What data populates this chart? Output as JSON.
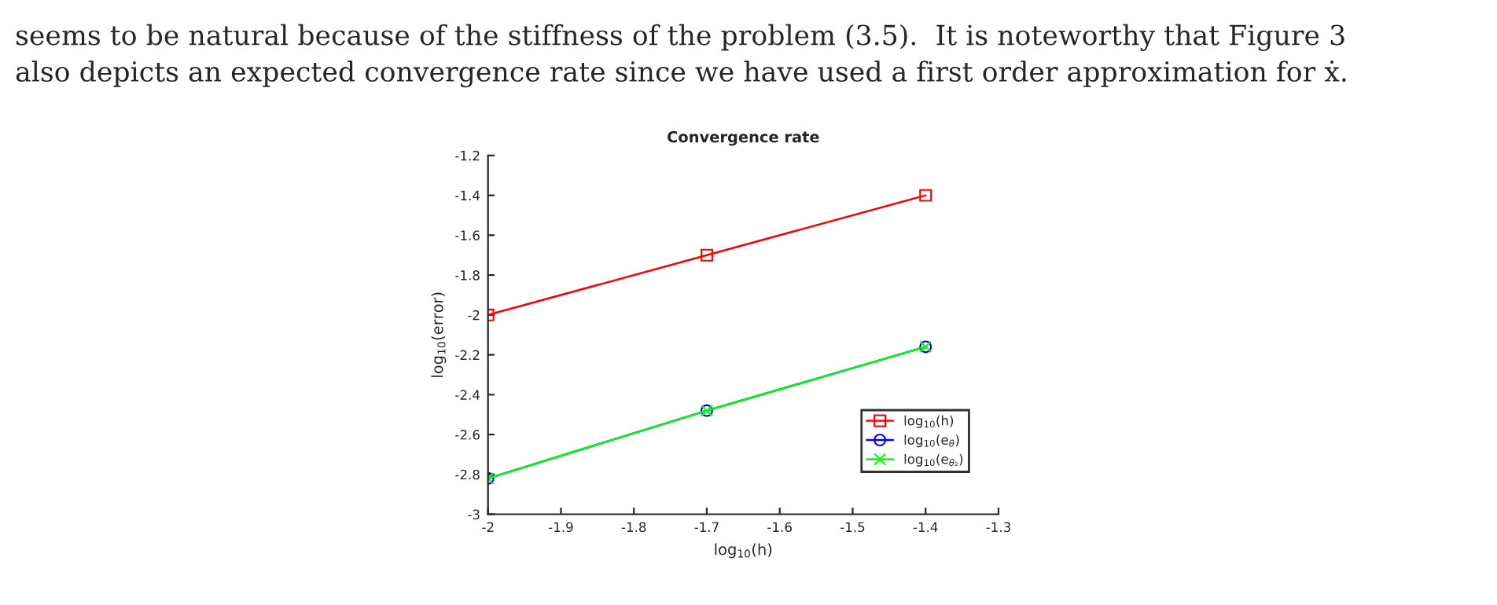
{
  "chart_data": {
    "type": "line",
    "title": "Convergence rate",
    "xlabel": "log$_{10}$(h)",
    "ylabel": "log$_{10}$(error)",
    "x": [
      -2,
      -1.7,
      -1.4
    ],
    "series": [
      {
        "name": "log$_{10}$(h)",
        "color": "#ff0000",
        "marker": "square",
        "values": [
          -2,
          -1.7,
          -1.4
        ]
      },
      {
        "name": "log$_{10}$(e$_{θ}$)",
        "color": "#0000ff",
        "marker": "circle",
        "values": [
          -2.82,
          -2.48,
          -2.16
        ]
      },
      {
        "name": "log$_{10}$(e$_{θ₂}$)",
        "color": "#00ff00",
        "marker": "cross",
        "values": [
          -2.82,
          -2.48,
          -2.16
        ]
      }
    ],
    "xlim": [
      -2,
      -1.3
    ],
    "xticks": [
      -2,
      -1.9,
      -1.8,
      -1.7,
      -1.6,
      -1.5,
      -1.4,
      -1.3
    ],
    "ylim": [
      -3,
      -1.2
    ],
    "yticks": [
      -3,
      -2.8,
      -2.6,
      -2.4,
      -2.2,
      -2,
      -1.8,
      -1.6,
      -1.4,
      -1.2
    ],
    "grid": false,
    "legend": "bottom right",
    "line_style": "solid",
    "annotations": [
      "seems to be natural because of the stiffness of the problem (3.5).  It is noteworthy that Figure 3",
      "also depicts an expected convergence rate since we have used a first order approximation for ẋ."
    ]
  }
}
